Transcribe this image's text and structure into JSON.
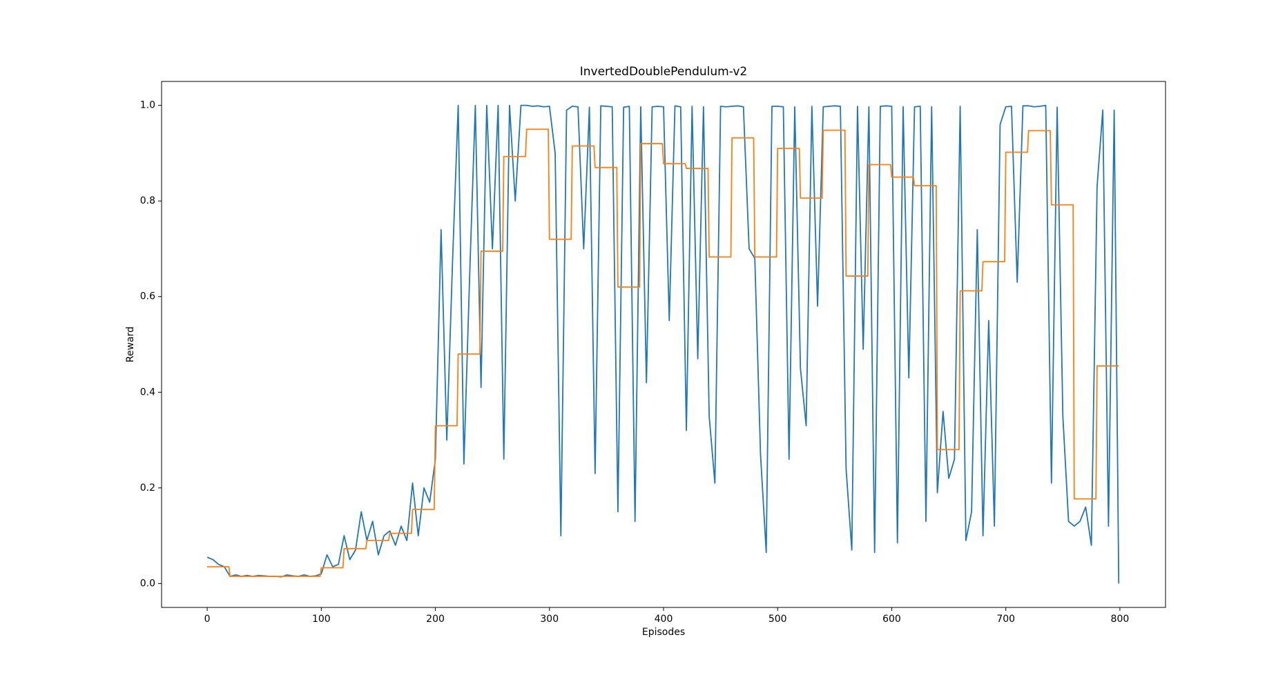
{
  "chart_data": {
    "type": "line",
    "title": "InvertedDoublePendulum-v2",
    "xlabel": "Episodes",
    "ylabel": "Reward",
    "xlim": [
      -40,
      840
    ],
    "ylim": [
      -0.05,
      1.05
    ],
    "xticks": [
      0,
      100,
      200,
      300,
      400,
      500,
      600,
      700,
      800
    ],
    "yticks": [
      {
        "value": 0,
        "label": "0.0"
      },
      0.2,
      0.4,
      0.6,
      0.8,
      {
        "value": 1,
        "label": "1.0"
      }
    ],
    "series": [
      {
        "color": "#1f77b4",
        "x": [
          0,
          5,
          10,
          15,
          20,
          25,
          30,
          35,
          40,
          45,
          50,
          55,
          60,
          65,
          70,
          75,
          80,
          85,
          90,
          95,
          100,
          105,
          110,
          115,
          120,
          125,
          130,
          135,
          140,
          145,
          150,
          155,
          160,
          165,
          170,
          175,
          180,
          185,
          190,
          195,
          200,
          205,
          210,
          215,
          220,
          225,
          230,
          235,
          240,
          245,
          250,
          255,
          260,
          265,
          270,
          275,
          280,
          285,
          290,
          295,
          300,
          305,
          310,
          315,
          320,
          325,
          330,
          335,
          340,
          345,
          350,
          355,
          360,
          365,
          370,
          375,
          380,
          385,
          390,
          395,
          400,
          405,
          410,
          415,
          420,
          425,
          430,
          435,
          440,
          445,
          450,
          455,
          460,
          465,
          470,
          475,
          480,
          485,
          490,
          495,
          500,
          505,
          510,
          515,
          520,
          525,
          530,
          535,
          540,
          545,
          550,
          555,
          560,
          565,
          570,
          575,
          580,
          585,
          590,
          595,
          600,
          605,
          610,
          615,
          620,
          625,
          630,
          635,
          640,
          645,
          650,
          655,
          660,
          665,
          670,
          675,
          680,
          685,
          690,
          695,
          700,
          705,
          710,
          715,
          720,
          725,
          730,
          735,
          740,
          745,
          750,
          755,
          760,
          765,
          770,
          775,
          780,
          785,
          790,
          795,
          799
        ],
        "values": [
          0.055,
          0.05,
          0.04,
          0.035,
          0.015,
          0.018,
          0.015,
          0.017,
          0.015,
          0.017,
          0.016,
          0.015,
          0.015,
          0.014,
          0.018,
          0.016,
          0.015,
          0.018,
          0.015,
          0.016,
          0.02,
          0.06,
          0.035,
          0.04,
          0.1,
          0.05,
          0.07,
          0.15,
          0.09,
          0.13,
          0.06,
          0.1,
          0.11,
          0.08,
          0.12,
          0.09,
          0.21,
          0.1,
          0.2,
          0.17,
          0.26,
          0.74,
          0.3,
          0.67,
          1.0,
          0.25,
          0.64,
          1.0,
          0.41,
          1.0,
          0.7,
          1.0,
          0.26,
          1.0,
          0.8,
          1.0,
          1.0,
          0.998,
          0.999,
          0.997,
          0.998,
          0.9,
          0.1,
          0.99,
          0.998,
          0.997,
          0.7,
          0.996,
          0.23,
          0.999,
          0.998,
          0.997,
          0.15,
          0.996,
          0.998,
          0.13,
          0.997,
          0.42,
          0.997,
          0.998,
          0.997,
          0.55,
          0.999,
          0.997,
          0.32,
          0.998,
          0.47,
          0.997,
          0.35,
          0.21,
          0.998,
          0.997,
          0.998,
          0.999,
          0.997,
          0.7,
          0.68,
          0.27,
          0.065,
          0.998,
          0.998,
          0.997,
          0.26,
          0.997,
          0.45,
          0.33,
          0.998,
          0.58,
          0.997,
          0.998,
          0.999,
          0.998,
          0.24,
          0.07,
          0.998,
          0.49,
          0.997,
          0.065,
          0.998,
          0.999,
          0.998,
          0.085,
          0.997,
          0.43,
          0.997,
          0.998,
          0.13,
          0.997,
          0.19,
          0.36,
          0.22,
          0.26,
          0.998,
          0.09,
          0.15,
          0.74,
          0.1,
          0.55,
          0.12,
          0.96,
          0.997,
          0.998,
          0.63,
          0.999,
          0.999,
          0.997,
          0.998,
          1.0,
          0.21,
          0.996,
          0.35,
          0.13,
          0.12,
          0.13,
          0.16,
          0.08,
          0.83,
          0.99,
          0.12,
          0.99,
          0.0
        ]
      },
      {
        "color": "#ff7f0e",
        "x": [
          0,
          19,
          20,
          39,
          40,
          59,
          60,
          79,
          80,
          99,
          100,
          119,
          120,
          139,
          140,
          159,
          160,
          179,
          180,
          199,
          200,
          219,
          220,
          239,
          240,
          259,
          260,
          279,
          280,
          299,
          300,
          319,
          320,
          339,
          340,
          359,
          360,
          379,
          380,
          399,
          400,
          419,
          420,
          439,
          440,
          459,
          460,
          479,
          480,
          499,
          500,
          519,
          520,
          539,
          540,
          559,
          560,
          579,
          580,
          599,
          600,
          619,
          620,
          639,
          640,
          659,
          660,
          679,
          680,
          699,
          700,
          719,
          720,
          739,
          740,
          759,
          760,
          779,
          780,
          799
        ],
        "values": [
          0.035,
          0.035,
          0.015,
          0.015,
          0.015,
          0.015,
          0.015,
          0.015,
          0.015,
          0.015,
          0.033,
          0.033,
          0.073,
          0.073,
          0.09,
          0.09,
          0.105,
          0.105,
          0.155,
          0.155,
          0.33,
          0.33,
          0.48,
          0.48,
          0.695,
          0.695,
          0.893,
          0.893,
          0.95,
          0.95,
          0.72,
          0.72,
          0.915,
          0.915,
          0.87,
          0.87,
          0.62,
          0.62,
          0.92,
          0.92,
          0.878,
          0.878,
          0.868,
          0.868,
          0.683,
          0.683,
          0.932,
          0.932,
          0.683,
          0.683,
          0.91,
          0.91,
          0.806,
          0.806,
          0.948,
          0.948,
          0.643,
          0.643,
          0.876,
          0.876,
          0.85,
          0.85,
          0.832,
          0.832,
          0.28,
          0.28,
          0.612,
          0.612,
          0.673,
          0.673,
          0.902,
          0.902,
          0.947,
          0.947,
          0.792,
          0.792,
          0.177,
          0.177,
          0.455,
          0.455
        ]
      }
    ]
  }
}
